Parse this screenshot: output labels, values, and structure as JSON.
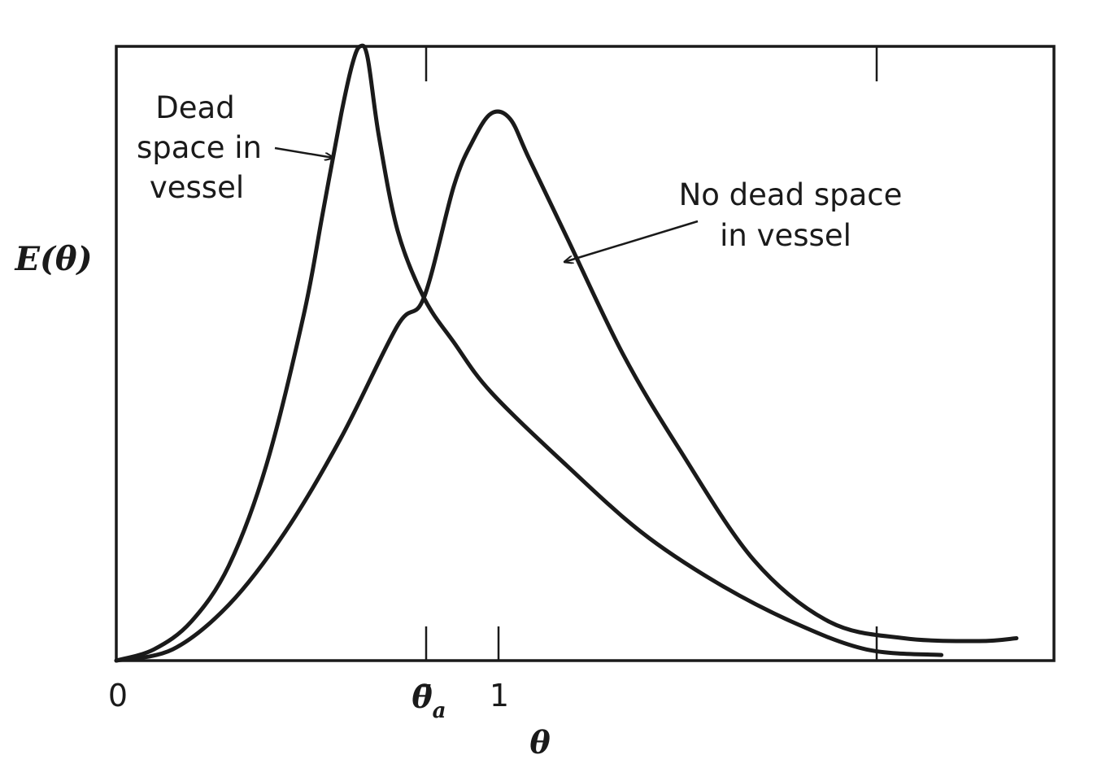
{
  "chart_data": {
    "type": "line",
    "ylabel": "E(θ)",
    "xlabel": "θ",
    "x_ticks": [
      {
        "value": 0,
        "label": "0"
      },
      {
        "value": 0.82,
        "label": "θ̄",
        "subscript": "a"
      },
      {
        "value": 1,
        "label": "1"
      }
    ],
    "xlim": [
      0,
      2.5
    ],
    "ylim": [
      0,
      1.1
    ],
    "grid": false,
    "legend": "none",
    "series": [
      {
        "name": "Dead space in vessel",
        "x": [
          0,
          0.1,
          0.2,
          0.3,
          0.4,
          0.5,
          0.55,
          0.6,
          0.63,
          0.65,
          0.67,
          0.7,
          0.75,
          0.82,
          0.9,
          1.0,
          1.2,
          1.4,
          1.6,
          1.8,
          2.0,
          2.2
        ],
        "y": [
          0,
          0.02,
          0.07,
          0.17,
          0.35,
          0.62,
          0.8,
          0.98,
          1.07,
          1.1,
          1.08,
          0.94,
          0.77,
          0.65,
          0.57,
          0.48,
          0.35,
          0.23,
          0.14,
          0.07,
          0.02,
          0.01
        ]
      },
      {
        "name": "No dead space in vessel",
        "x": [
          0,
          0.15,
          0.3,
          0.45,
          0.6,
          0.75,
          0.82,
          0.9,
          0.95,
          1.0,
          1.05,
          1.1,
          1.2,
          1.35,
          1.5,
          1.7,
          1.9,
          2.1,
          2.3,
          2.4
        ],
        "y": [
          0,
          0.02,
          0.1,
          0.23,
          0.4,
          0.6,
          0.65,
          0.85,
          0.93,
          0.98,
          0.97,
          0.9,
          0.76,
          0.55,
          0.38,
          0.18,
          0.07,
          0.04,
          0.035,
          0.04
        ]
      }
    ],
    "annotations": [
      {
        "text_lines": [
          "Dead",
          "space in",
          "vessel"
        ],
        "points_to": "Dead space in vessel"
      },
      {
        "text_lines": [
          "No dead space",
          "in vessel"
        ],
        "points_to": "No dead space in vessel"
      }
    ],
    "colors": {
      "line": "#1a1a1a",
      "frame": "#1a1a1a",
      "background": "#ffffff"
    }
  }
}
